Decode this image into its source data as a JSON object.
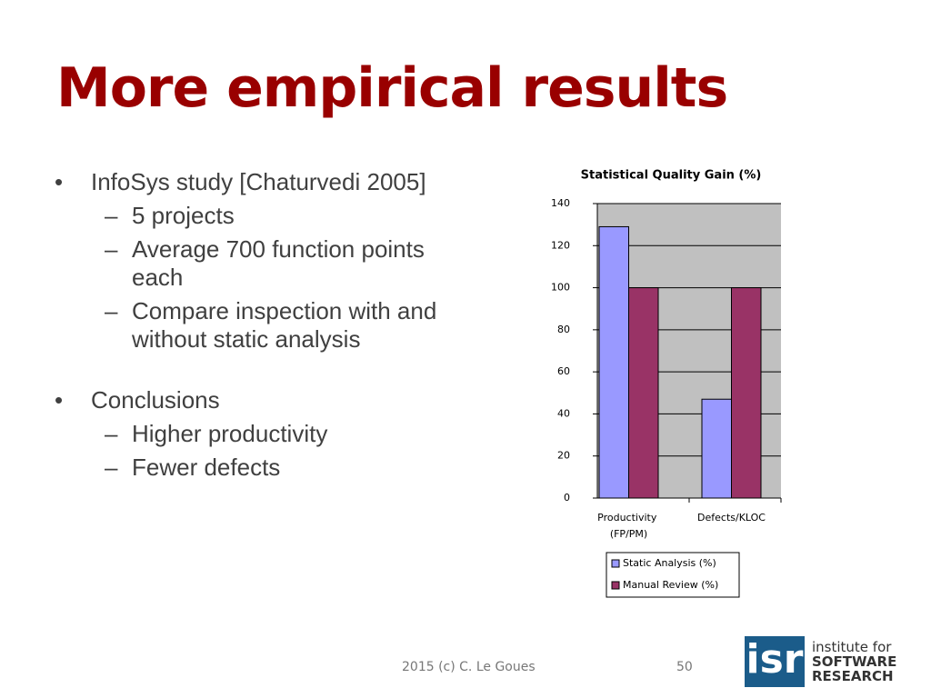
{
  "slide": {
    "title": "More empirical results",
    "bullets": [
      {
        "text": "InfoSys study [Chaturvedi 2005]",
        "sub": [
          "5 projects",
          "Average 700 function points each",
          "Compare inspection with and without static analysis"
        ]
      },
      {
        "text": "Conclusions",
        "sub": [
          "Higher productivity",
          "Fewer defects"
        ]
      }
    ],
    "footer": "2015 (c) C. Le Goues",
    "page_number": "50",
    "logo": {
      "mark": "isr",
      "line1": "institute for",
      "line2": "SOFTWARE",
      "line3": "RESEARCH"
    }
  },
  "chart_data": {
    "type": "bar",
    "title": "Statistical Quality Gain (%)",
    "categories": [
      "Productivity (FP/PM)",
      "Defects/KLOC"
    ],
    "series": [
      {
        "name": "Static Analysis (%)",
        "color": "#9999ff",
        "values": [
          129,
          47
        ]
      },
      {
        "name": "Manual Review (%)",
        "color": "#993366",
        "values": [
          100,
          100
        ]
      }
    ],
    "ylim": [
      0,
      140
    ],
    "yticks": [
      0,
      20,
      40,
      60,
      80,
      100,
      120,
      140
    ],
    "grid": true
  }
}
